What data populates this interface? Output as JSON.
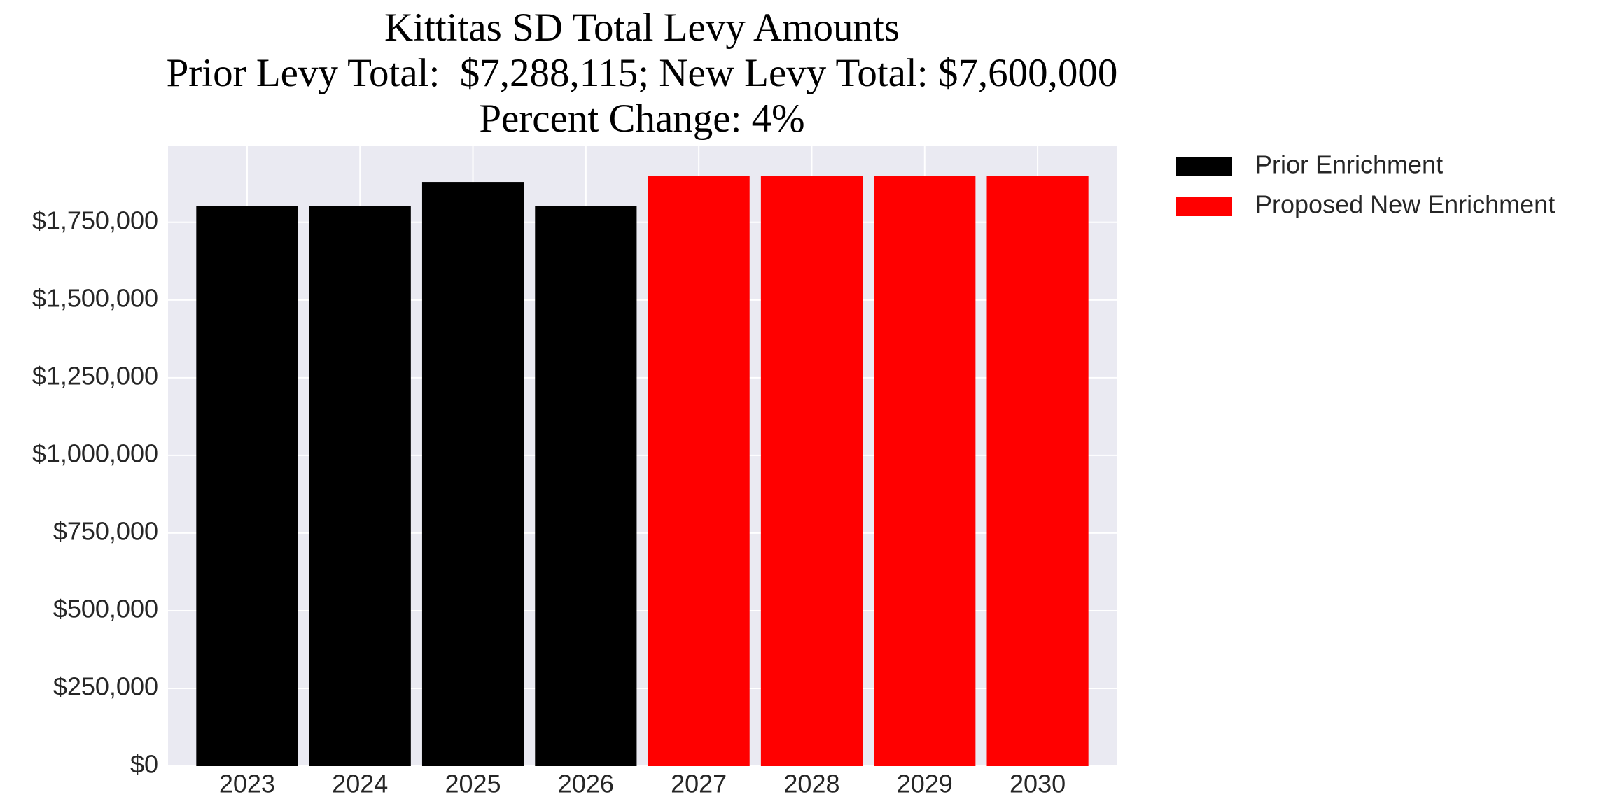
{
  "chart_data": {
    "type": "bar",
    "title": "Kittitas SD Total Levy Amounts",
    "subtitle": [
      "Prior Levy Total:  $7,288,115; New Levy Total: $7,600,000",
      "Percent Change: 4%"
    ],
    "categories": [
      "2023",
      "2024",
      "2025",
      "2026",
      "2027",
      "2028",
      "2029",
      "2030"
    ],
    "series": [
      {
        "name": "Prior Enrichment",
        "color": "#000000",
        "values": [
          1802705,
          1802705,
          1880000,
          1802705,
          null,
          null,
          null,
          null
        ]
      },
      {
        "name": "Proposed New Enrichment",
        "color": "#ff0000",
        "values": [
          null,
          null,
          null,
          null,
          1900000,
          1900000,
          1900000,
          1900000
        ]
      }
    ],
    "ylim": [
      0,
      1995000
    ],
    "yticks": [
      {
        "value": 0,
        "label": "$0"
      },
      {
        "value": 250000,
        "label": "$250,000"
      },
      {
        "value": 500000,
        "label": "$500,000"
      },
      {
        "value": 750000,
        "label": "$750,000"
      },
      {
        "value": 1000000,
        "label": "$1,000,000"
      },
      {
        "value": 1250000,
        "label": "$1,250,000"
      },
      {
        "value": 1500000,
        "label": "$1,500,000"
      },
      {
        "value": 1750000,
        "label": "$1,750,000"
      }
    ],
    "grid": true,
    "background": "#eaeaf2",
    "legend": "outside-upper-right"
  }
}
